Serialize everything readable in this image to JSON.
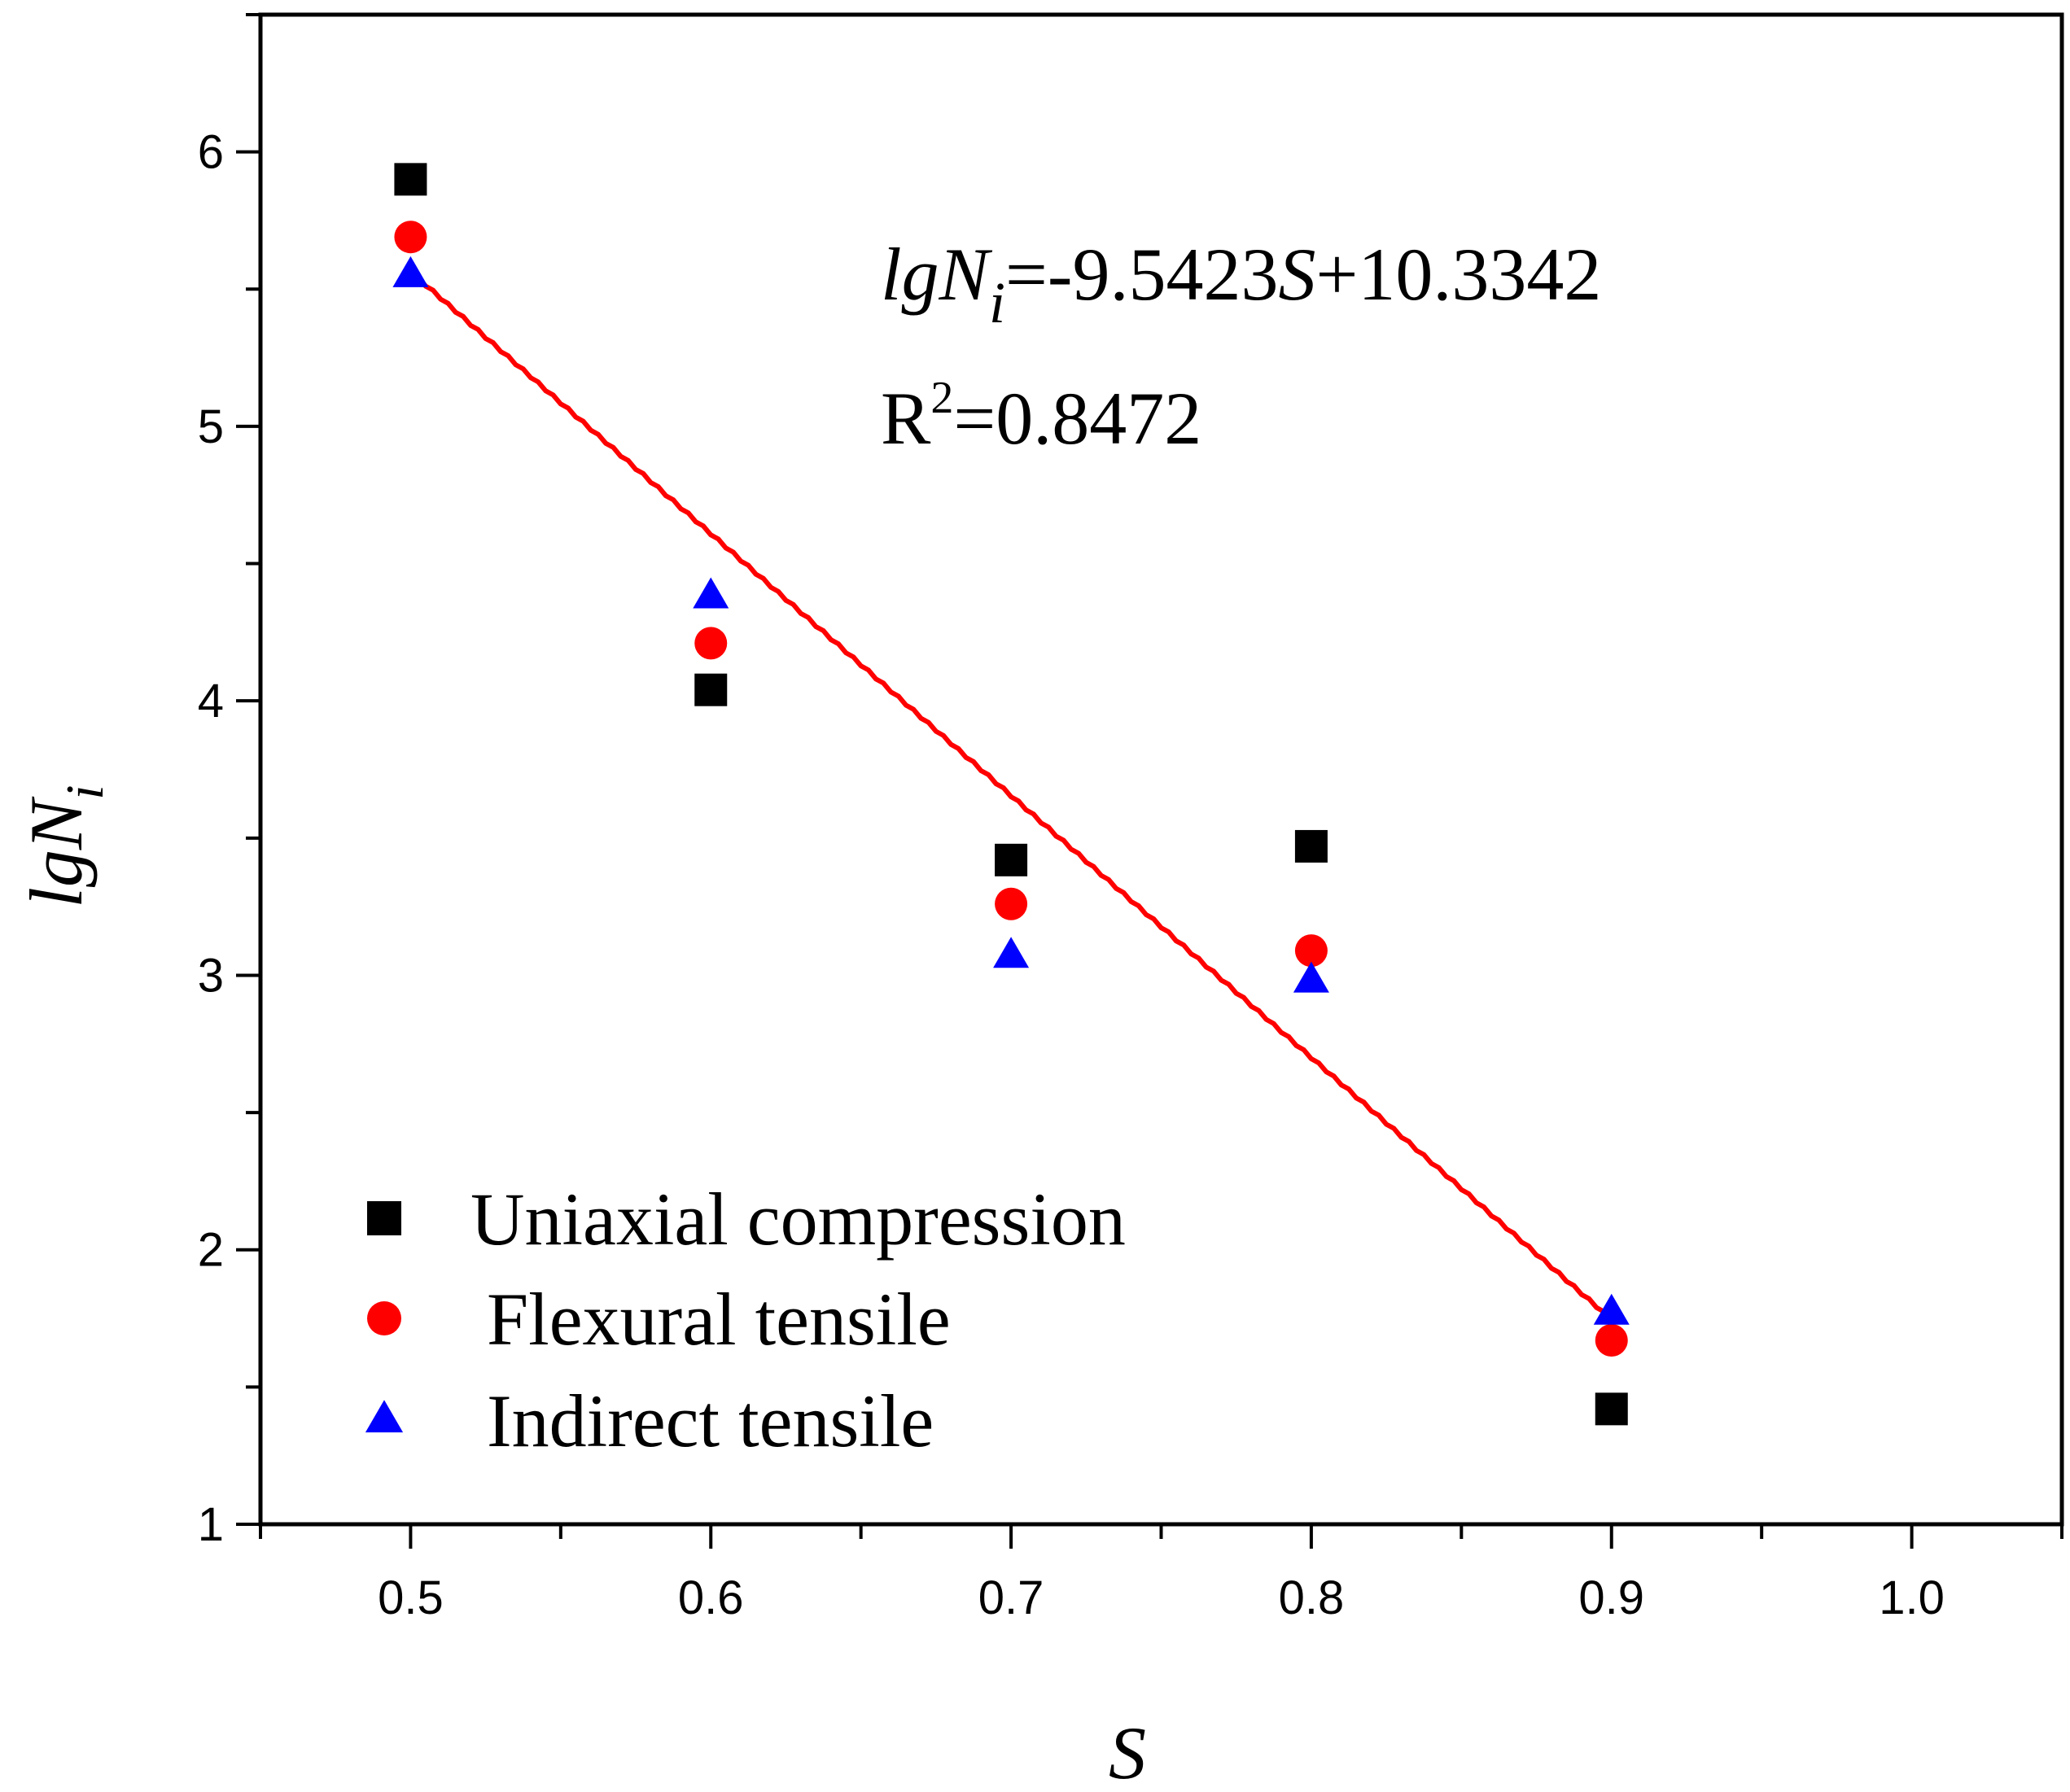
{
  "chart_data": {
    "type": "scatter",
    "title": "",
    "xlabel": "S",
    "ylabel": {
      "main": "lgN",
      "sub": "i"
    },
    "xlim": [
      0.45,
      1.05
    ],
    "ylim": [
      1,
      6.5
    ],
    "xticks": [
      0.5,
      0.6,
      0.7,
      0.8,
      0.9,
      1.0
    ],
    "xtick_labels": [
      "0.5",
      "0.6",
      "0.7",
      "0.8",
      "0.9",
      "1.0"
    ],
    "yticks": [
      1,
      2,
      3,
      4,
      5,
      6
    ],
    "ytick_labels": [
      "1",
      "2",
      "3",
      "4",
      "5",
      "6"
    ],
    "series": [
      {
        "name": "Uniaxial compression",
        "marker": "square",
        "color": "#000000",
        "x": [
          0.5,
          0.6,
          0.7,
          0.8,
          0.9
        ],
        "y": [
          5.9,
          4.04,
          3.42,
          3.47,
          1.42
        ]
      },
      {
        "name": "Flexural tensile",
        "marker": "circle",
        "color": "#ff0000",
        "x": [
          0.5,
          0.6,
          0.7,
          0.8,
          0.9
        ],
        "y": [
          5.69,
          4.21,
          3.26,
          3.09,
          1.67
        ]
      },
      {
        "name": "Indirect tensile",
        "marker": "triangle",
        "color": "#0000ff",
        "x": [
          0.5,
          0.6,
          0.7,
          0.8,
          0.9
        ],
        "y": [
          5.55,
          4.38,
          3.07,
          2.98,
          1.77
        ]
      }
    ],
    "fit": {
      "color": "#ff0000",
      "slope": -9.5423,
      "intercept": 10.3342,
      "x_range": [
        0.5,
        0.9
      ],
      "equation": {
        "lhs": "lgN",
        "lhs_sub": "i",
        "mid": "=-9.5423",
        "var": "S",
        "rhs": "+10.3342"
      },
      "r2": {
        "label": "R",
        "sup": "2",
        "value": "=0.8472"
      }
    },
    "legend_position": "bottom-left"
  }
}
